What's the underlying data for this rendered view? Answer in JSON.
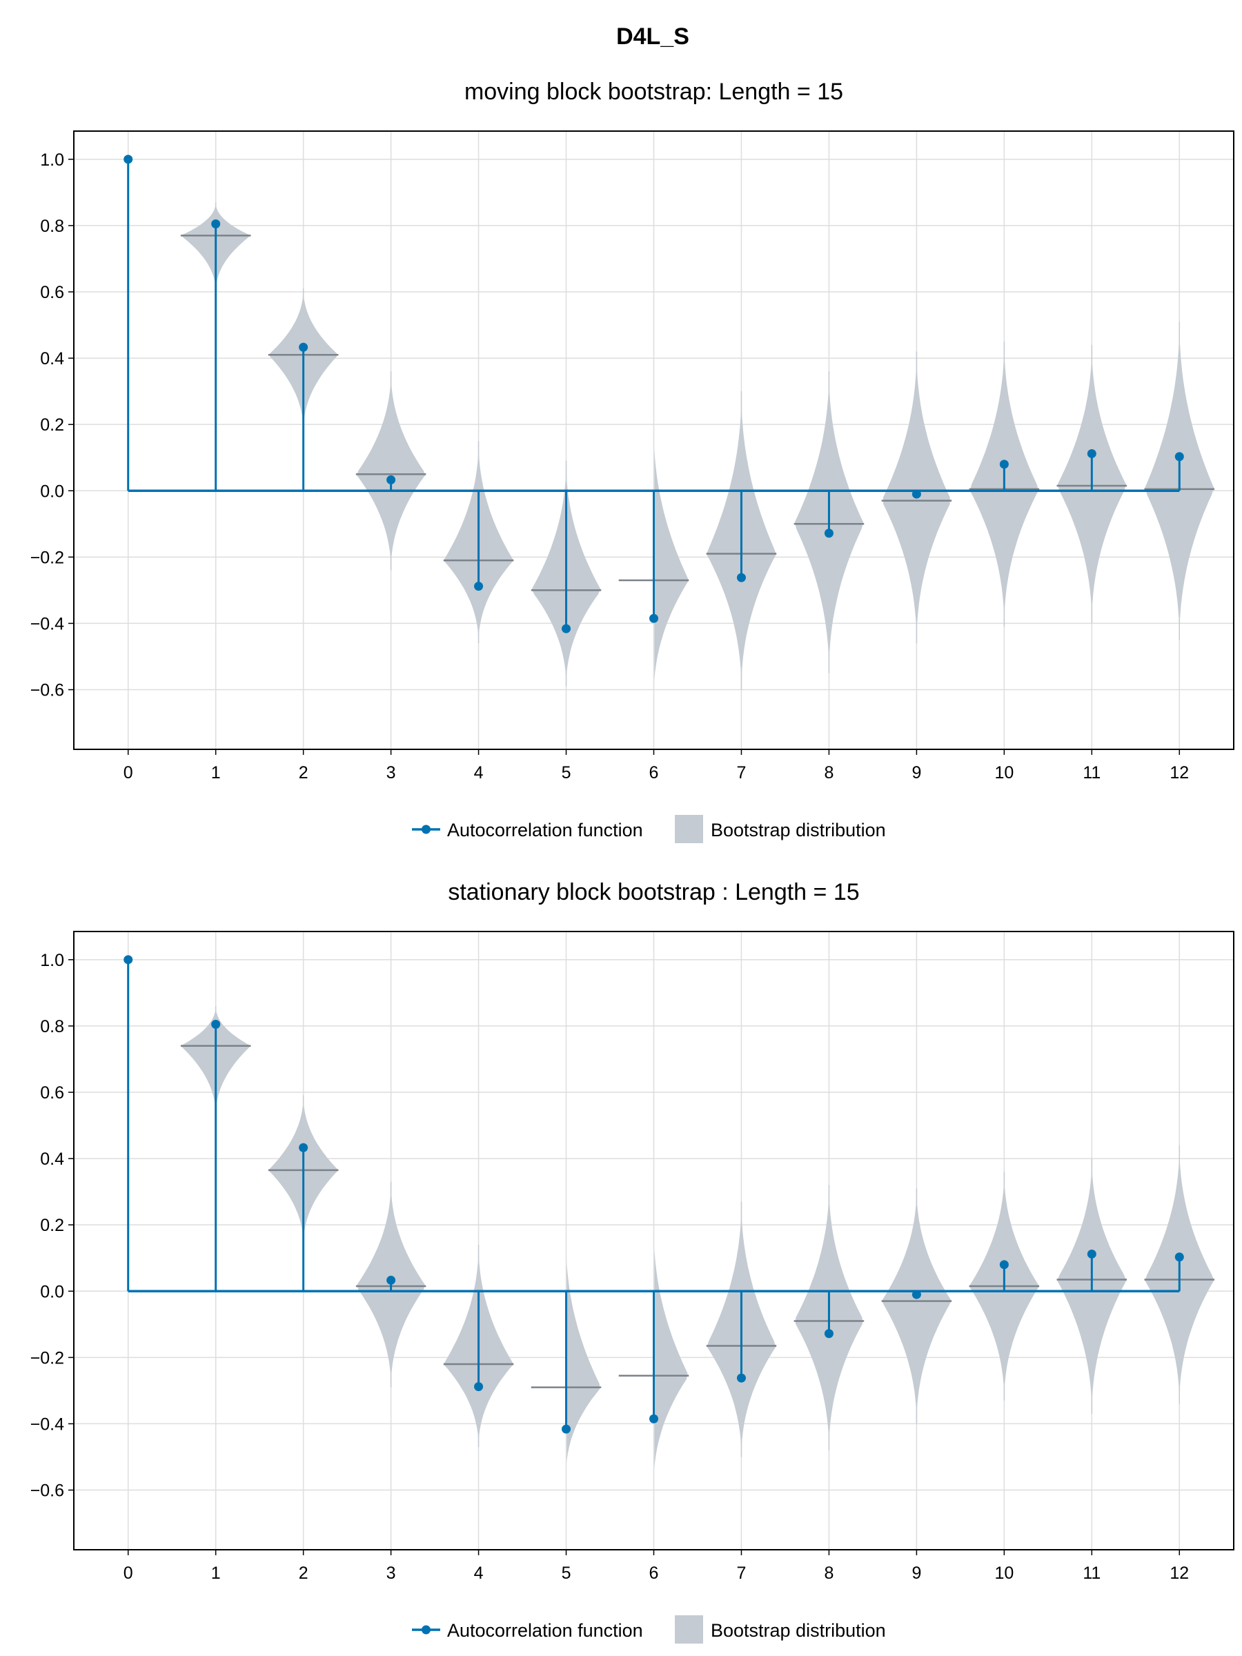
{
  "figure": {
    "title": "D4L_S"
  },
  "legend": {
    "acf_label": "Autocorrelation function",
    "boot_label": "Bootstrap distribution"
  },
  "colors": {
    "acf": "#0072b2",
    "violin": "#c4cbd2",
    "median": "#7c8289",
    "grid": "#dddddd"
  },
  "chart_data": [
    {
      "type": "violin",
      "title": "moving block bootstrap: Length = 15",
      "xlabel": "",
      "ylabel": "",
      "xlim": [
        -0.62,
        12.62
      ],
      "ylim": [
        -0.78,
        1.085
      ],
      "xticks": [
        0,
        1,
        2,
        3,
        4,
        5,
        6,
        7,
        8,
        9,
        10,
        11,
        12
      ],
      "yticks": [
        -0.6,
        -0.4,
        -0.2,
        0.0,
        0.2,
        0.4,
        0.6,
        0.8,
        1.0
      ],
      "ytick_labels": [
        "−0.6",
        "−0.4",
        "−0.2",
        "0.0",
        "0.2",
        "0.4",
        "0.6",
        "0.8",
        "1.0"
      ],
      "grid": true,
      "legend_position": "bottom-center",
      "series": [
        {
          "name": "Autocorrelation function",
          "type": "stem",
          "x": [
            0,
            1,
            2,
            3,
            4,
            5,
            6,
            7,
            8,
            9,
            10,
            11,
            12
          ],
          "y": [
            1.0,
            0.805,
            0.433,
            0.033,
            -0.288,
            -0.416,
            -0.385,
            -0.262,
            -0.128,
            -0.01,
            0.08,
            0.112,
            0.103
          ]
        },
        {
          "name": "Bootstrap distribution",
          "type": "violin",
          "x": [
            1,
            2,
            3,
            4,
            5,
            6,
            7,
            8,
            9,
            10,
            11,
            12
          ],
          "min": [
            0.6,
            0.18,
            -0.24,
            -0.46,
            -0.59,
            -0.62,
            -0.6,
            -0.55,
            -0.46,
            -0.41,
            -0.4,
            -0.45
          ],
          "max": [
            0.87,
            0.61,
            0.36,
            0.15,
            0.09,
            0.19,
            0.3,
            0.36,
            0.42,
            0.45,
            0.44,
            0.51
          ],
          "median": [
            0.77,
            0.41,
            0.05,
            -0.21,
            -0.3,
            -0.27,
            -0.19,
            -0.1,
            -0.03,
            0.005,
            0.015,
            0.005
          ]
        }
      ]
    },
    {
      "type": "violin",
      "title": "stationary block bootstrap : Length = 15",
      "xlabel": "",
      "ylabel": "",
      "xlim": [
        -0.62,
        12.62
      ],
      "ylim": [
        -0.78,
        1.085
      ],
      "xticks": [
        0,
        1,
        2,
        3,
        4,
        5,
        6,
        7,
        8,
        9,
        10,
        11,
        12
      ],
      "yticks": [
        -0.6,
        -0.4,
        -0.2,
        0.0,
        0.2,
        0.4,
        0.6,
        0.8,
        1.0
      ],
      "ytick_labels": [
        "−0.6",
        "−0.4",
        "−0.2",
        "0.0",
        "0.2",
        "0.4",
        "0.6",
        "0.8",
        "1.0"
      ],
      "grid": true,
      "legend_position": "bottom-center",
      "series": [
        {
          "name": "Autocorrelation function",
          "type": "stem",
          "x": [
            0,
            1,
            2,
            3,
            4,
            5,
            6,
            7,
            8,
            9,
            10,
            11,
            12
          ],
          "y": [
            1.0,
            0.805,
            0.433,
            0.033,
            -0.288,
            -0.416,
            -0.385,
            -0.262,
            -0.128,
            -0.01,
            0.08,
            0.112,
            0.103
          ]
        },
        {
          "name": "Bootstrap distribution",
          "type": "violin",
          "x": [
            1,
            2,
            3,
            4,
            5,
            6,
            7,
            8,
            9,
            10,
            11,
            12
          ],
          "min": [
            0.53,
            0.14,
            -0.29,
            -0.47,
            -0.55,
            -0.58,
            -0.5,
            -0.48,
            -0.4,
            -0.33,
            -0.37,
            -0.34
          ],
          "max": [
            0.86,
            0.59,
            0.33,
            0.14,
            0.15,
            0.19,
            0.27,
            0.32,
            0.31,
            0.36,
            0.4,
            0.44
          ],
          "median": [
            0.74,
            0.365,
            0.015,
            -0.22,
            -0.29,
            -0.255,
            -0.165,
            -0.09,
            -0.03,
            0.015,
            0.035,
            0.035
          ]
        }
      ]
    }
  ]
}
